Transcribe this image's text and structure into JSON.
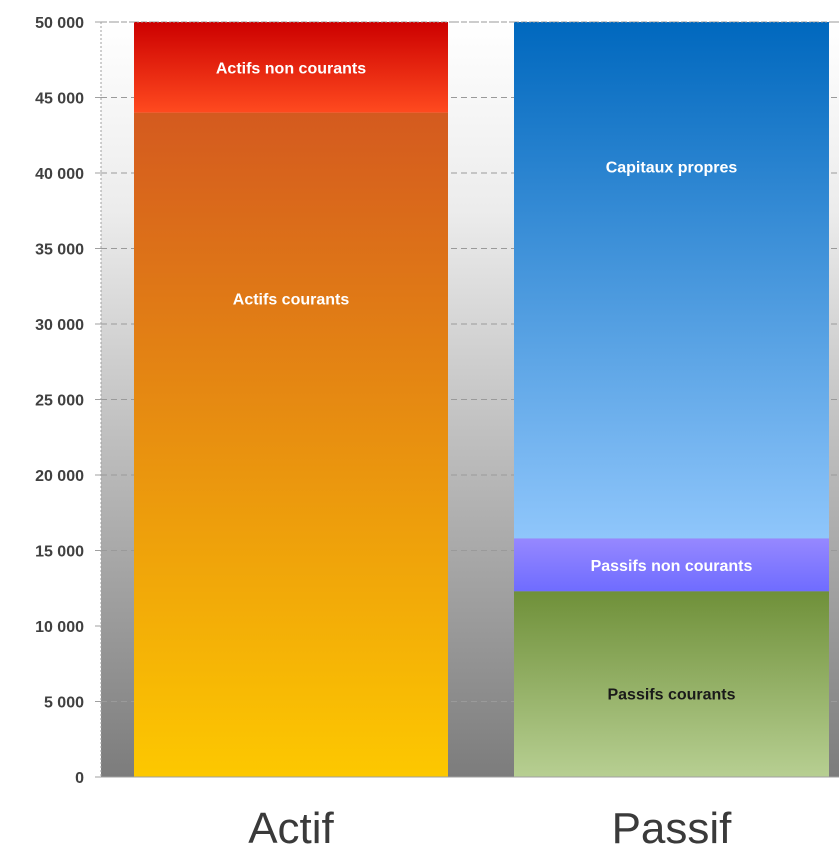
{
  "chart_data": {
    "type": "bar",
    "stacked": true,
    "title": "",
    "xlabel": "",
    "ylabel": "",
    "ylim": [
      0,
      50000
    ],
    "yticks": [
      0,
      5000,
      10000,
      15000,
      20000,
      25000,
      30000,
      35000,
      40000,
      45000,
      50000
    ],
    "ytick_labels": [
      "0",
      "5 000",
      "10 000",
      "15 000",
      "20 000",
      "25 000",
      "30 000",
      "35 000",
      "40 000",
      "45 000",
      "50 000"
    ],
    "grid": true,
    "legend": "none",
    "categories": [
      "Actif",
      "Passif"
    ],
    "bars": [
      {
        "category": "Actif",
        "segments": [
          {
            "label": "Actifs courants",
            "value": 44000,
            "colors": [
              "#fdc800",
              "#d45a1f"
            ],
            "text_color": "#ffffff"
          },
          {
            "label": "Actifs non courants",
            "value": 6000,
            "colors": [
              "#ff4a1f",
              "#cc0000"
            ],
            "text_color": "#ffffff"
          }
        ]
      },
      {
        "category": "Passif",
        "segments": [
          {
            "label": "Passifs courants",
            "value": 12300,
            "colors": [
              "#b7cf92",
              "#6f9039"
            ],
            "text_color": "#1a1a1a"
          },
          {
            "label": "Passifs non courants",
            "value": 3500,
            "colors": [
              "#6f6cff",
              "#9688ff"
            ],
            "text_color": "#ffffff"
          },
          {
            "label": "Capitaux propres",
            "value": 34200,
            "colors": [
              "#8fc6fb",
              "#0068be"
            ],
            "text_color": "#ffffff"
          }
        ]
      }
    ]
  }
}
